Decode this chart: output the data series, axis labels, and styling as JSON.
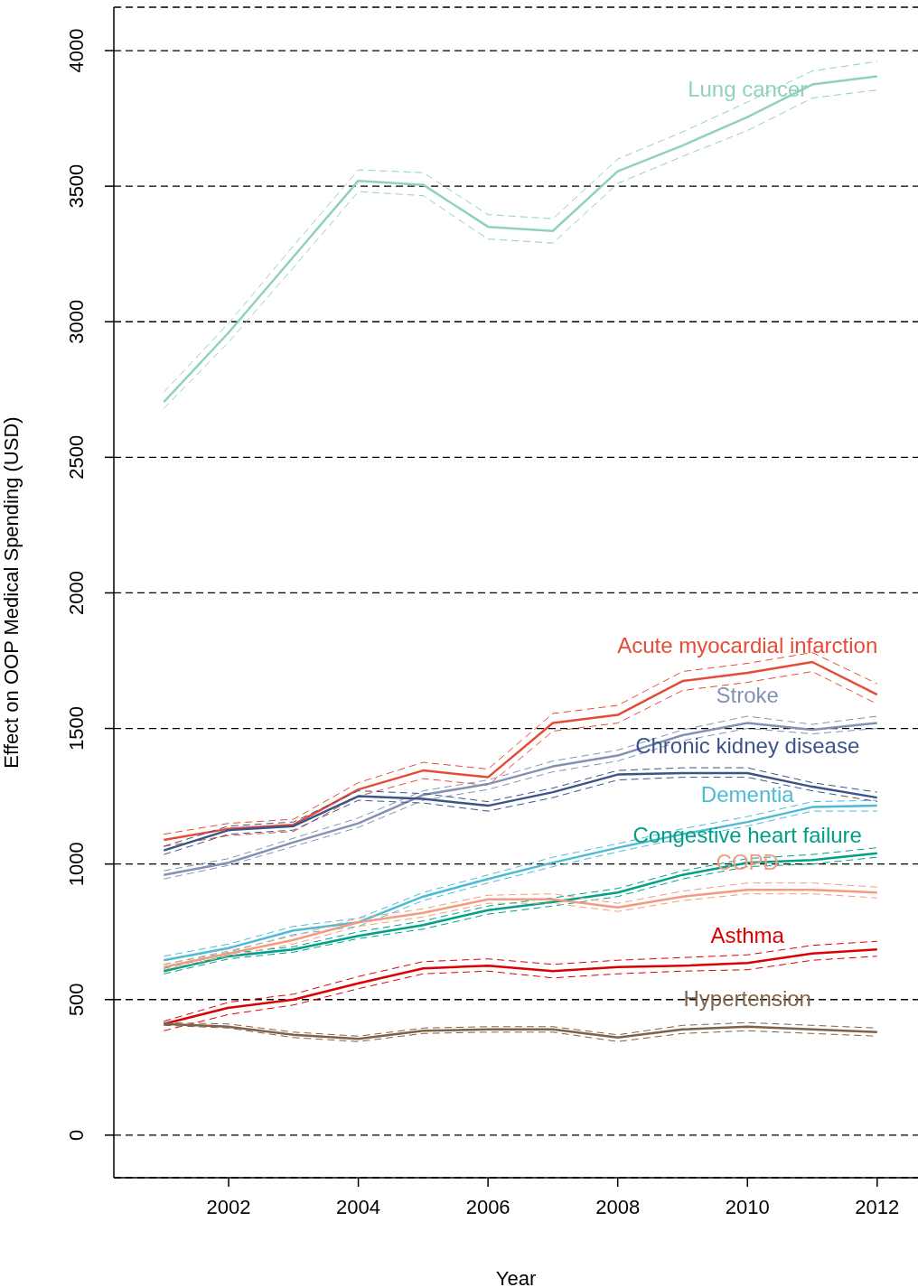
{
  "chart_data": {
    "type": "line",
    "xlabel": "Year",
    "ylabel": "Effect on OOP Medical Spending (USD)",
    "x": [
      2001,
      2002,
      2003,
      2004,
      2005,
      2006,
      2007,
      2008,
      2009,
      2010,
      2011,
      2012
    ],
    "xlim": [
      2000.23,
      2012.63
    ],
    "xticks": [
      2002,
      2004,
      2006,
      2008,
      2010,
      2012
    ],
    "ylim": [
      -157,
      4160
    ],
    "yticks": [
      0,
      500,
      1000,
      1500,
      2000,
      2500,
      3000,
      3500,
      4000
    ],
    "grid": "y",
    "marker": "none",
    "line_style": "solid",
    "series": [
      {
        "name": "Lung cancer",
        "color": "#8fd1bf",
        "values": [
          2704,
          2960,
          3240,
          3520,
          3505,
          3350,
          3335,
          3555,
          3650,
          3755,
          3875,
          3905
        ]
      },
      {
        "color": "#8fd1bf",
        "line_style": "dashed",
        "values": [
          2680,
          2925,
          3200,
          3480,
          3465,
          3305,
          3290,
          3510,
          3610,
          3705,
          3825,
          3855
        ]
      },
      {
        "color": "#8fd1bf",
        "line_style": "dashed",
        "values": [
          2740,
          2995,
          3280,
          3560,
          3550,
          3395,
          3380,
          3600,
          3700,
          3810,
          3925,
          3960
        ]
      },
      {
        "name": "Acute myocardial infarction",
        "color": "#e64b35",
        "values": [
          1089,
          1130,
          1145,
          1275,
          1345,
          1320,
          1520,
          1550,
          1675,
          1705,
          1745,
          1625
        ]
      },
      {
        "color": "#e64b35",
        "line_style": "dashed",
        "values": [
          1065,
          1105,
          1120,
          1250,
          1315,
          1290,
          1490,
          1520,
          1640,
          1670,
          1710,
          1590
        ]
      },
      {
        "color": "#e64b35",
        "line_style": "dashed",
        "values": [
          1110,
          1150,
          1165,
          1300,
          1375,
          1350,
          1555,
          1585,
          1710,
          1740,
          1780,
          1665
        ]
      },
      {
        "name": "Stroke",
        "color": "#8491b4",
        "values": [
          960,
          1005,
          1080,
          1150,
          1255,
          1295,
          1360,
          1400,
          1475,
          1520,
          1495,
          1520
        ]
      },
      {
        "color": "#8491b4",
        "line_style": "dashed",
        "values": [
          945,
          995,
          1065,
          1135,
          1235,
          1275,
          1340,
          1380,
          1455,
          1500,
          1480,
          1500
        ]
      },
      {
        "color": "#8491b4",
        "line_style": "dashed",
        "values": [
          975,
          1020,
          1095,
          1170,
          1270,
          1310,
          1380,
          1420,
          1495,
          1545,
          1515,
          1545
        ]
      },
      {
        "name": "Chronic kidney disease",
        "color": "#3c5488",
        "values": [
          1050,
          1125,
          1140,
          1250,
          1240,
          1215,
          1265,
          1330,
          1335,
          1335,
          1285,
          1245
        ]
      },
      {
        "color": "#3c5488",
        "line_style": "dashed",
        "values": [
          1035,
          1110,
          1125,
          1235,
          1225,
          1195,
          1245,
          1310,
          1320,
          1320,
          1270,
          1230
        ]
      },
      {
        "color": "#3c5488",
        "line_style": "dashed",
        "values": [
          1065,
          1140,
          1155,
          1270,
          1260,
          1230,
          1280,
          1345,
          1355,
          1355,
          1300,
          1265
        ]
      },
      {
        "name": "Dementia",
        "color": "#4dbbd5",
        "values": [
          645,
          690,
          755,
          785,
          880,
          945,
          1005,
          1060,
          1110,
          1155,
          1210,
          1215
        ]
      },
      {
        "color": "#4dbbd5",
        "line_style": "dashed",
        "values": [
          630,
          675,
          740,
          770,
          865,
          930,
          990,
          1045,
          1095,
          1140,
          1195,
          1195
        ]
      },
      {
        "color": "#4dbbd5",
        "line_style": "dashed",
        "values": [
          660,
          705,
          770,
          800,
          895,
          960,
          1025,
          1075,
          1130,
          1175,
          1230,
          1235
        ]
      },
      {
        "name": "Congestive heart failure",
        "color": "#00a087",
        "values": [
          605,
          660,
          685,
          735,
          775,
          830,
          860,
          895,
          960,
          1005,
          1015,
          1040
        ]
      },
      {
        "color": "#00a087",
        "line_style": "dashed",
        "values": [
          595,
          650,
          675,
          725,
          760,
          815,
          845,
          880,
          945,
          990,
          1000,
          1025
        ]
      },
      {
        "color": "#00a087",
        "line_style": "dashed",
        "values": [
          615,
          670,
          695,
          750,
          790,
          845,
          875,
          910,
          975,
          1020,
          1035,
          1060
        ]
      },
      {
        "name": "COPD",
        "color": "#f39b7f",
        "values": [
          620,
          670,
          720,
          785,
          820,
          870,
          870,
          840,
          880,
          905,
          905,
          895
        ]
      },
      {
        "color": "#f39b7f",
        "line_style": "dashed",
        "values": [
          610,
          660,
          705,
          770,
          805,
          855,
          855,
          825,
          865,
          890,
          890,
          875
        ]
      },
      {
        "color": "#f39b7f",
        "line_style": "dashed",
        "values": [
          630,
          680,
          735,
          800,
          835,
          885,
          890,
          855,
          900,
          930,
          930,
          915
        ]
      },
      {
        "name": "Asthma",
        "color": "#dc0000",
        "values": [
          410,
          470,
          500,
          560,
          615,
          625,
          605,
          620,
          625,
          635,
          670,
          685
        ]
      },
      {
        "color": "#dc0000",
        "line_style": "dashed",
        "values": [
          385,
          445,
          480,
          540,
          595,
          605,
          580,
          595,
          605,
          610,
          645,
          660
        ]
      },
      {
        "color": "#dc0000",
        "line_style": "dashed",
        "values": [
          420,
          490,
          520,
          585,
          640,
          650,
          630,
          645,
          655,
          665,
          700,
          715
        ]
      },
      {
        "name": "Hypertension",
        "color": "#7e6148",
        "values": [
          410,
          400,
          370,
          355,
          385,
          390,
          390,
          360,
          390,
          400,
          390,
          380
        ]
      },
      {
        "color": "#7e6148",
        "line_style": "dashed",
        "values": [
          405,
          395,
          360,
          345,
          375,
          380,
          380,
          345,
          375,
          385,
          375,
          365
        ]
      },
      {
        "color": "#7e6148",
        "line_style": "dashed",
        "values": [
          415,
          410,
          380,
          365,
          395,
          400,
          400,
          370,
          405,
          415,
          405,
          395
        ]
      }
    ]
  }
}
